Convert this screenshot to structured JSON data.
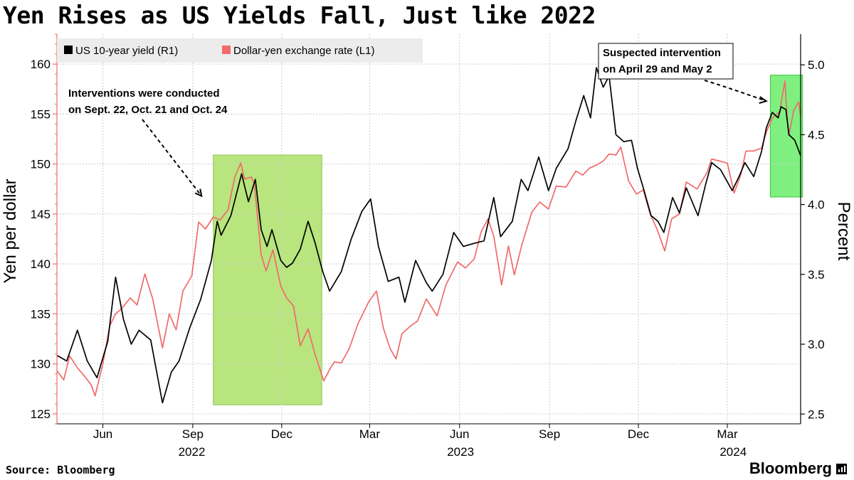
{
  "title": "Yen Rises as US Yields Fall, Just like 2022",
  "footer": {
    "source": "Source: Bloomberg",
    "brand": "Bloomberg"
  },
  "chart_data": {
    "type": "line",
    "title": "Yen Rises as US Yields Fall, Just like 2022",
    "y_left": {
      "label": "Yen per dollar",
      "range": [
        124,
        163
      ],
      "ticks": [
        125,
        130,
        135,
        140,
        145,
        150,
        155,
        160
      ]
    },
    "y_right": {
      "label": "Percent",
      "range": [
        2.43,
        5.22
      ],
      "ticks": [
        2.5,
        3.0,
        3.5,
        4.0,
        4.5,
        5.0
      ],
      "tick_labels": [
        "2.5",
        "3.0",
        "3.5",
        "4.0",
        "4.5",
        "5.0"
      ]
    },
    "x_axis": {
      "range": [
        "2022-04-15",
        "2024-05-15"
      ],
      "ticks": [
        {
          "label": "Jun",
          "date": "2022-06-01"
        },
        {
          "label": "Sep",
          "date": "2022-09-01"
        },
        {
          "label": "Dec",
          "date": "2022-12-01"
        },
        {
          "label": "Mar",
          "date": "2023-03-01"
        },
        {
          "label": "Jun",
          "date": "2023-06-01"
        },
        {
          "label": "Sep",
          "date": "2023-09-01"
        },
        {
          "label": "Dec",
          "date": "2023-12-01"
        },
        {
          "label": "Mar",
          "date": "2024-03-01"
        }
      ],
      "year_labels": [
        {
          "label": "2022",
          "date": "2022-08-31"
        },
        {
          "label": "2023",
          "date": "2023-06-02"
        },
        {
          "label": "2024",
          "date": "2024-03-07"
        }
      ]
    },
    "grid": true,
    "legend_placement": "top-left",
    "series": [
      {
        "name": "US 10-year yield (R1)",
        "axis": "right",
        "color": "#000000",
        "points": [
          [
            "2022-04-15",
            2.92
          ],
          [
            "2022-04-25",
            2.88
          ],
          [
            "2022-05-06",
            3.1
          ],
          [
            "2022-05-16",
            2.88
          ],
          [
            "2022-05-26",
            2.76
          ],
          [
            "2022-06-06",
            3.02
          ],
          [
            "2022-06-14",
            3.48
          ],
          [
            "2022-06-22",
            3.18
          ],
          [
            "2022-06-30",
            3.0
          ],
          [
            "2022-07-08",
            3.1
          ],
          [
            "2022-07-20",
            3.03
          ],
          [
            "2022-08-01",
            2.58
          ],
          [
            "2022-08-10",
            2.8
          ],
          [
            "2022-08-18",
            2.88
          ],
          [
            "2022-08-29",
            3.12
          ],
          [
            "2022-09-09",
            3.32
          ],
          [
            "2022-09-20",
            3.6
          ],
          [
            "2022-09-26",
            3.88
          ],
          [
            "2022-09-30",
            3.78
          ],
          [
            "2022-10-10",
            3.92
          ],
          [
            "2022-10-21",
            4.22
          ],
          [
            "2022-10-28",
            4.02
          ],
          [
            "2022-11-04",
            4.18
          ],
          [
            "2022-11-10",
            3.82
          ],
          [
            "2022-11-16",
            3.7
          ],
          [
            "2022-11-21",
            3.82
          ],
          [
            "2022-11-30",
            3.6
          ],
          [
            "2022-12-06",
            3.55
          ],
          [
            "2022-12-12",
            3.58
          ],
          [
            "2022-12-20",
            3.68
          ],
          [
            "2022-12-28",
            3.88
          ],
          [
            "2023-01-04",
            3.73
          ],
          [
            "2023-01-12",
            3.52
          ],
          [
            "2023-01-19",
            3.38
          ],
          [
            "2023-01-31",
            3.52
          ],
          [
            "2023-02-10",
            3.75
          ],
          [
            "2023-02-21",
            3.95
          ],
          [
            "2023-03-02",
            4.04
          ],
          [
            "2023-03-10",
            3.7
          ],
          [
            "2023-03-20",
            3.45
          ],
          [
            "2023-03-31",
            3.48
          ],
          [
            "2023-04-06",
            3.3
          ],
          [
            "2023-04-17",
            3.6
          ],
          [
            "2023-04-28",
            3.44
          ],
          [
            "2023-05-04",
            3.38
          ],
          [
            "2023-05-15",
            3.5
          ],
          [
            "2023-05-26",
            3.8
          ],
          [
            "2023-06-05",
            3.7
          ],
          [
            "2023-06-15",
            3.72
          ],
          [
            "2023-06-26",
            3.74
          ],
          [
            "2023-07-06",
            4.05
          ],
          [
            "2023-07-13",
            3.77
          ],
          [
            "2023-07-25",
            3.88
          ],
          [
            "2023-08-03",
            4.18
          ],
          [
            "2023-08-10",
            4.1
          ],
          [
            "2023-08-21",
            4.34
          ],
          [
            "2023-08-31",
            4.1
          ],
          [
            "2023-09-08",
            4.26
          ],
          [
            "2023-09-20",
            4.4
          ],
          [
            "2023-09-28",
            4.6
          ],
          [
            "2023-10-06",
            4.78
          ],
          [
            "2023-10-13",
            4.62
          ],
          [
            "2023-10-19",
            4.98
          ],
          [
            "2023-10-26",
            4.84
          ],
          [
            "2023-11-01",
            4.92
          ],
          [
            "2023-11-08",
            4.5
          ],
          [
            "2023-11-16",
            4.45
          ],
          [
            "2023-11-24",
            4.46
          ],
          [
            "2023-11-30",
            4.26
          ],
          [
            "2023-12-06",
            4.12
          ],
          [
            "2023-12-14",
            3.92
          ],
          [
            "2023-12-21",
            3.88
          ],
          [
            "2023-12-27",
            3.8
          ],
          [
            "2024-01-05",
            4.05
          ],
          [
            "2024-01-12",
            3.94
          ],
          [
            "2024-01-19",
            4.12
          ],
          [
            "2024-01-31",
            3.92
          ],
          [
            "2024-02-08",
            4.15
          ],
          [
            "2024-02-14",
            4.3
          ],
          [
            "2024-02-23",
            4.25
          ],
          [
            "2024-03-06",
            4.1
          ],
          [
            "2024-03-13",
            4.2
          ],
          [
            "2024-03-19",
            4.3
          ],
          [
            "2024-03-28",
            4.2
          ],
          [
            "2024-04-05",
            4.38
          ],
          [
            "2024-04-10",
            4.55
          ],
          [
            "2024-04-16",
            4.66
          ],
          [
            "2024-04-22",
            4.62
          ],
          [
            "2024-04-25",
            4.7
          ],
          [
            "2024-04-30",
            4.68
          ],
          [
            "2024-05-03",
            4.5
          ],
          [
            "2024-05-09",
            4.46
          ],
          [
            "2024-05-15",
            4.35
          ]
        ]
      },
      {
        "name": "Dollar-yen exchange rate (L1)",
        "axis": "left",
        "color": "#f26a6a",
        "points": [
          [
            "2022-04-15",
            129.3
          ],
          [
            "2022-04-22",
            128.4
          ],
          [
            "2022-04-28",
            130.8
          ],
          [
            "2022-05-06",
            129.6
          ],
          [
            "2022-05-13",
            128.8
          ],
          [
            "2022-05-20",
            127.9
          ],
          [
            "2022-05-24",
            126.8
          ],
          [
            "2022-06-01",
            130.0
          ],
          [
            "2022-06-08",
            133.8
          ],
          [
            "2022-06-14",
            135.0
          ],
          [
            "2022-06-20",
            135.5
          ],
          [
            "2022-06-29",
            136.6
          ],
          [
            "2022-07-06",
            135.9
          ],
          [
            "2022-07-14",
            139.0
          ],
          [
            "2022-07-22",
            136.5
          ],
          [
            "2022-08-01",
            131.6
          ],
          [
            "2022-08-08",
            135.0
          ],
          [
            "2022-08-15",
            133.4
          ],
          [
            "2022-08-22",
            137.3
          ],
          [
            "2022-08-31",
            138.8
          ],
          [
            "2022-09-07",
            144.2
          ],
          [
            "2022-09-14",
            143.5
          ],
          [
            "2022-09-22",
            144.7
          ],
          [
            "2022-09-29",
            144.4
          ],
          [
            "2022-10-07",
            145.4
          ],
          [
            "2022-10-14",
            148.7
          ],
          [
            "2022-10-20",
            150.1
          ],
          [
            "2022-10-24",
            148.5
          ],
          [
            "2022-10-31",
            148.7
          ],
          [
            "2022-11-03",
            148.0
          ],
          [
            "2022-11-10",
            140.9
          ],
          [
            "2022-11-15",
            139.3
          ],
          [
            "2022-11-22",
            141.4
          ],
          [
            "2022-11-30",
            137.8
          ],
          [
            "2022-12-06",
            136.6
          ],
          [
            "2022-12-13",
            135.8
          ],
          [
            "2022-12-20",
            131.8
          ],
          [
            "2022-12-28",
            133.5
          ],
          [
            "2023-01-04",
            131.0
          ],
          [
            "2023-01-13",
            128.3
          ],
          [
            "2023-01-20",
            129.6
          ],
          [
            "2023-01-24",
            130.2
          ],
          [
            "2023-01-31",
            130.1
          ],
          [
            "2023-02-08",
            131.5
          ],
          [
            "2023-02-17",
            134.0
          ],
          [
            "2023-02-28",
            136.2
          ],
          [
            "2023-03-08",
            137.3
          ],
          [
            "2023-03-15",
            133.6
          ],
          [
            "2023-03-22",
            131.5
          ],
          [
            "2023-03-28",
            130.5
          ],
          [
            "2023-04-03",
            133.0
          ],
          [
            "2023-04-12",
            133.8
          ],
          [
            "2023-04-19",
            134.3
          ],
          [
            "2023-04-28",
            136.5
          ],
          [
            "2023-05-09",
            134.8
          ],
          [
            "2023-05-18",
            137.9
          ],
          [
            "2023-05-30",
            140.2
          ],
          [
            "2023-06-07",
            139.6
          ],
          [
            "2023-06-16",
            140.5
          ],
          [
            "2023-06-23",
            143.2
          ],
          [
            "2023-06-30",
            144.5
          ],
          [
            "2023-07-06",
            142.8
          ],
          [
            "2023-07-14",
            137.9
          ],
          [
            "2023-07-21",
            141.8
          ],
          [
            "2023-07-27",
            138.9
          ],
          [
            "2023-08-04",
            142.0
          ],
          [
            "2023-08-14",
            145.2
          ],
          [
            "2023-08-22",
            146.2
          ],
          [
            "2023-08-31",
            145.5
          ],
          [
            "2023-09-08",
            147.8
          ],
          [
            "2023-09-18",
            147.7
          ],
          [
            "2023-09-28",
            149.3
          ],
          [
            "2023-10-05",
            148.9
          ],
          [
            "2023-10-12",
            149.6
          ],
          [
            "2023-10-19",
            149.9
          ],
          [
            "2023-10-26",
            150.3
          ],
          [
            "2023-11-01",
            151.0
          ],
          [
            "2023-11-08",
            150.9
          ],
          [
            "2023-11-13",
            151.7
          ],
          [
            "2023-11-21",
            148.3
          ],
          [
            "2023-11-29",
            147.0
          ],
          [
            "2023-12-06",
            147.4
          ],
          [
            "2023-12-13",
            145.0
          ],
          [
            "2023-12-20",
            143.5
          ],
          [
            "2023-12-28",
            141.3
          ],
          [
            "2024-01-04",
            144.5
          ],
          [
            "2024-01-12",
            145.0
          ],
          [
            "2024-01-19",
            148.2
          ],
          [
            "2024-01-30",
            147.5
          ],
          [
            "2024-02-09",
            149.1
          ],
          [
            "2024-02-14",
            150.5
          ],
          [
            "2024-02-22",
            150.3
          ],
          [
            "2024-03-01",
            150.1
          ],
          [
            "2024-03-08",
            147.1
          ],
          [
            "2024-03-15",
            149.0
          ],
          [
            "2024-03-20",
            151.3
          ],
          [
            "2024-03-28",
            151.3
          ],
          [
            "2024-04-05",
            151.6
          ],
          [
            "2024-04-10",
            153.2
          ],
          [
            "2024-04-16",
            154.6
          ],
          [
            "2024-04-24",
            155.3
          ],
          [
            "2024-04-26",
            156.7
          ],
          [
            "2024-04-29",
            158.3
          ],
          [
            "2024-05-01",
            154.8
          ],
          [
            "2024-05-03",
            152.9
          ],
          [
            "2024-05-08",
            155.4
          ],
          [
            "2024-05-13",
            156.2
          ],
          [
            "2024-05-15",
            154.7
          ]
        ]
      }
    ],
    "annotations": [
      {
        "text_lines": [
          "Interventions were conducted",
          "on Sept. 22, Oct. 21 and Oct. 24"
        ],
        "boxed": false,
        "highlight": {
          "start": "2022-09-22",
          "end": "2023-01-11",
          "y_left": [
            125.9,
            150.9
          ],
          "color": "#b8e57e"
        },
        "arrow_to_date": "2022-09-10"
      },
      {
        "text_lines": [
          "Suspected intervention",
          "on April 29 and May 2"
        ],
        "boxed": true,
        "highlight": {
          "start": "2024-04-14",
          "end": "2024-05-17",
          "y_left": [
            146.7,
            158.9
          ],
          "color": "#7ff07f"
        },
        "arrow_to_date": "2024-04-12"
      }
    ]
  }
}
